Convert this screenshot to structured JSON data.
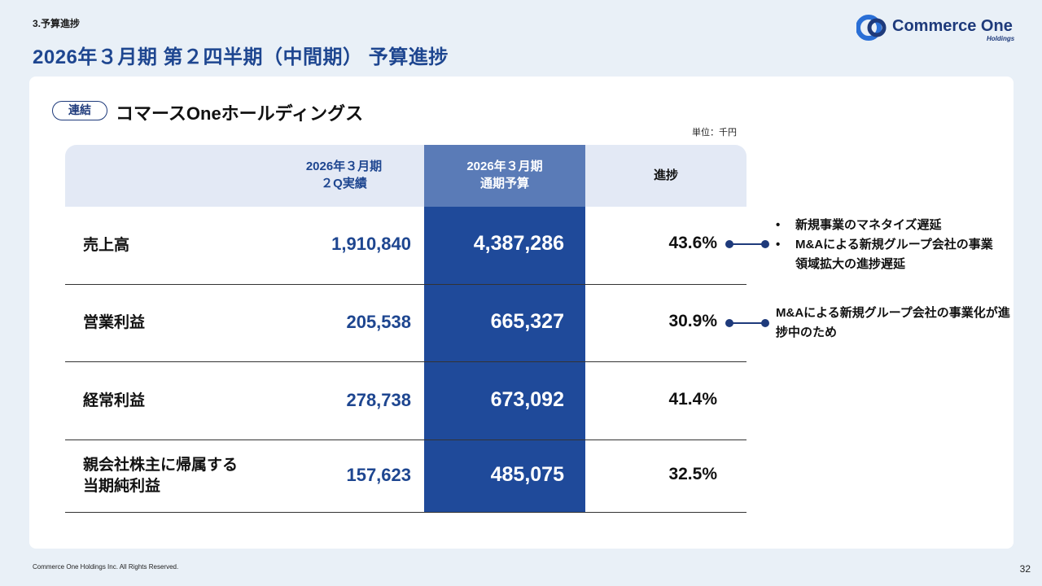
{
  "header": {
    "section": "3.予算進捗",
    "title": "2026年３月期 第２四半期（中間期） 予算進捗"
  },
  "logo": {
    "brand": "Commerce One",
    "sub": "Holdings"
  },
  "card": {
    "badge": "連結",
    "company": "コマースOneホールディングス",
    "unit": "単位：千円"
  },
  "table": {
    "headers": {
      "actual": "2026年３月期\n２Q実績",
      "budget": "2026年３月期\n通期予算",
      "progress": "進捗"
    },
    "rows": [
      {
        "label": "売上高",
        "actual": "1,910,840",
        "budget": "4,387,286",
        "progress": "43.6%"
      },
      {
        "label": "営業利益",
        "actual": "205,538",
        "budget": "665,327",
        "progress": "30.9%"
      },
      {
        "label": "経常利益",
        "actual": "278,738",
        "budget": "673,092",
        "progress": "41.4%"
      },
      {
        "label": "親会社株主に帰属する\n当期純利益",
        "actual": "157,623",
        "budget": "485,075",
        "progress": "32.5%"
      }
    ]
  },
  "notes": {
    "sales": [
      "新規事業のマネタイズ遅延",
      "M&Aによる新規グループ会社の事業領域拡大の進捗遅延"
    ],
    "operating": "M&Aによる新規グループ会社の事業化が進捗中のため"
  },
  "footer": {
    "copyright": "Commerce One Holdings Inc. All Rights Reserved.",
    "page": "32"
  },
  "colors": {
    "accent": "#1e4690",
    "budget_column": "#1f4a9a",
    "budget_header": "#5a7bb7",
    "header_bg": "#e3e9f5"
  }
}
